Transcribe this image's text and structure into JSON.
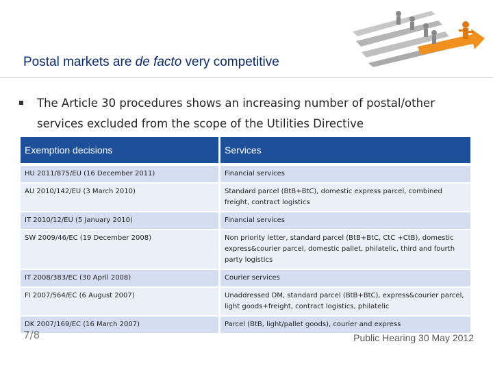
{
  "title": {
    "part1": "Postal markets are ",
    "italic": "de facto",
    "part2": " very competitive"
  },
  "bullet": "The Article 30 procedures shows an increasing number of postal/other services excluded from the scope of the Utilities Directive",
  "table": {
    "headers": [
      "Exemption  decisions",
      "Services"
    ],
    "rows": [
      {
        "decision": "HU 2011/875/EU (16 December 2011)",
        "services": "Financial services"
      },
      {
        "decision": "AU 2010/142/EU (3 March 2010)",
        "services": "Standard parcel (BtB+BtC), domestic express parcel, combined freight, contract logistics"
      },
      {
        "decision": "IT 2010/12/EU (5 January 2010)",
        "services": "Financial services"
      },
      {
        "decision": "SW 2009/46/EC (19 December 2008)",
        "services": "Non priority letter, standard parcel (BtB+BtC, CtC +CtB), domestic express&courier parcel, domestic pallet, philatelic, third and fourth party logistics"
      },
      {
        "decision": "IT 2008/383/EC (30 April 2008)",
        "services": "Courier services"
      },
      {
        "decision": "FI 2007/564/EC (6 August 2007)",
        "services": "Unaddressed DM, standard parcel (BtB+BtC), express&courier parcel, light goods+freight, contract logistics, philatelic"
      },
      {
        "decision": "DK 2007/169/EC (16 March 2007)",
        "services": "Parcel (BtB, light/pallet goods), courier and express"
      }
    ]
  },
  "footer": {
    "page": "7/8",
    "event": "Public Hearing 30 May 2012"
  },
  "colors": {
    "header_bg": "#1d4f9b",
    "row_odd": "#d5def0",
    "row_even": "#ebeff7",
    "title": "#0a2a6e",
    "accent": "#f0901e"
  },
  "art": {
    "icon": "racing-figures-arrows-icon"
  }
}
